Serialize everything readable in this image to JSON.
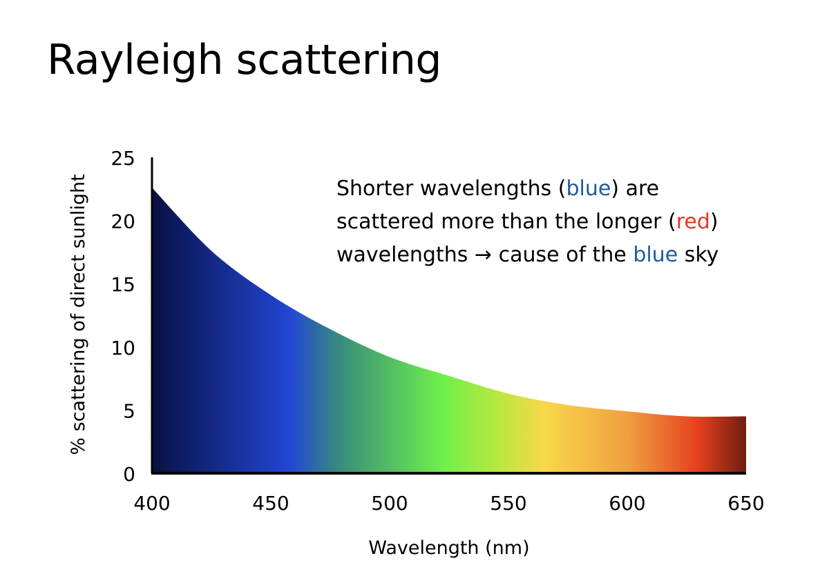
{
  "chart_data": {
    "type": "area",
    "title": "Rayleigh scattering",
    "xlabel": "Wavelength (nm)",
    "ylabel": "% scattering of direct sunlight",
    "xlim": [
      400,
      650
    ],
    "ylim": [
      0,
      25
    ],
    "x_ticks": [
      "400",
      "450",
      "500",
      "550",
      "600",
      "650"
    ],
    "y_ticks": [
      "0",
      "5",
      "10",
      "15",
      "20",
      "25"
    ],
    "x": [
      400,
      425,
      450,
      475,
      500,
      525,
      550,
      575,
      600,
      625,
      650
    ],
    "y": [
      22.6,
      17.6,
      14.1,
      11.4,
      9.2,
      7.7,
      6.3,
      5.4,
      4.9,
      4.5,
      4.5
    ],
    "grid": false,
    "fill_gradient": [
      {
        "x": 400,
        "color": "#0a1040"
      },
      {
        "x": 410,
        "color": "#0c1a5e"
      },
      {
        "x": 458,
        "color": "#2246d4"
      },
      {
        "x": 480,
        "color": "#3a8f7a"
      },
      {
        "x": 522,
        "color": "#6ef04a"
      },
      {
        "x": 545,
        "color": "#b5e840"
      },
      {
        "x": 565,
        "color": "#f8d84a"
      },
      {
        "x": 600,
        "color": "#f0a040"
      },
      {
        "x": 630,
        "color": "#e4401e"
      },
      {
        "x": 650,
        "color": "#6e1e10"
      }
    ],
    "annotation": {
      "lines": [
        [
          {
            "text": "Shorter wavelengths (",
            "style": "normal"
          },
          {
            "text": "blue",
            "style": "blue"
          },
          {
            "text": ") are",
            "style": "normal"
          }
        ],
        [
          {
            "text": "scattered more than the longer (",
            "style": "normal"
          },
          {
            "text": "red",
            "style": "red"
          },
          {
            "text": ")",
            "style": "normal"
          }
        ],
        [
          {
            "text": "wavelengths → cause of the ",
            "style": "normal"
          },
          {
            "text": "blue",
            "style": "blue"
          },
          {
            "text": " sky",
            "style": "normal"
          }
        ]
      ]
    },
    "colors": {
      "blue_text": "#1f5a9c",
      "red_text": "#e0391e",
      "axis": "#000000"
    }
  }
}
